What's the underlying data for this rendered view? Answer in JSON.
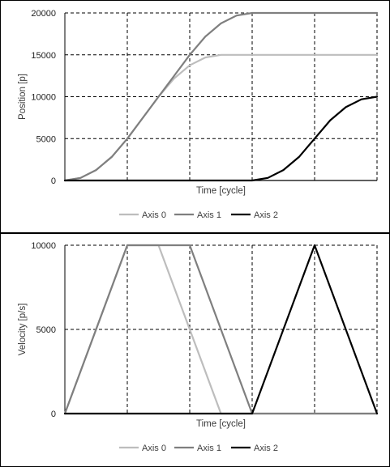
{
  "chart_data": [
    {
      "type": "line",
      "xlabel": "Time [cycle]",
      "ylabel": "Position [p]",
      "ylim": [
        0,
        20000
      ],
      "yticks": [
        0,
        5000,
        10000,
        15000,
        20000
      ],
      "xlim": [
        0,
        5
      ],
      "grid": true,
      "legend_position": "bottom",
      "series": [
        {
          "name": "Axis 0",
          "color": "#bdbdbd",
          "x": [
            0,
            0.25,
            0.5,
            0.75,
            1,
            1.25,
            1.5,
            1.75,
            2,
            2.25,
            2.5,
            2.75,
            3,
            3.5,
            4,
            4.5,
            5
          ],
          "y": [
            0,
            313,
            1250,
            2813,
            5000,
            7500,
            10000,
            12188,
            13750,
            14688,
            15000,
            15000,
            15000,
            15000,
            15000,
            15000,
            15000
          ]
        },
        {
          "name": "Axis 1",
          "color": "#7f7f7f",
          "x": [
            0,
            0.25,
            0.5,
            0.75,
            1,
            1.25,
            1.5,
            1.75,
            2,
            2.25,
            2.5,
            2.75,
            3,
            3.5,
            4,
            4.5,
            5
          ],
          "y": [
            0,
            313,
            1250,
            2813,
            5000,
            7500,
            10000,
            12500,
            15000,
            17188,
            18750,
            19688,
            20000,
            20000,
            20000,
            20000,
            20000
          ]
        },
        {
          "name": "Axis 2",
          "color": "#000000",
          "x": [
            0,
            1,
            2,
            3,
            3.25,
            3.5,
            3.75,
            4,
            4.25,
            4.5,
            4.75,
            5
          ],
          "y": [
            0,
            0,
            0,
            0,
            313,
            1250,
            2813,
            5000,
            7188,
            8750,
            9688,
            10000
          ]
        }
      ]
    },
    {
      "type": "line",
      "xlabel": "Time [cycle]",
      "ylabel": "Velocity [p/s]",
      "ylim": [
        0,
        10000
      ],
      "yticks": [
        0,
        5000,
        10000
      ],
      "xlim": [
        0,
        5
      ],
      "grid": true,
      "legend_position": "bottom",
      "series": [
        {
          "name": "Axis 0",
          "color": "#bdbdbd",
          "x": [
            0,
            1,
            1.5,
            2.5,
            5
          ],
          "y": [
            0,
            10000,
            10000,
            0,
            0
          ]
        },
        {
          "name": "Axis 1",
          "color": "#7f7f7f",
          "x": [
            0,
            1,
            2,
            3,
            5
          ],
          "y": [
            0,
            10000,
            10000,
            0,
            0
          ]
        },
        {
          "name": "Axis 2",
          "color": "#000000",
          "x": [
            0,
            3,
            4,
            5
          ],
          "y": [
            0,
            0,
            10000,
            0
          ]
        }
      ]
    }
  ]
}
